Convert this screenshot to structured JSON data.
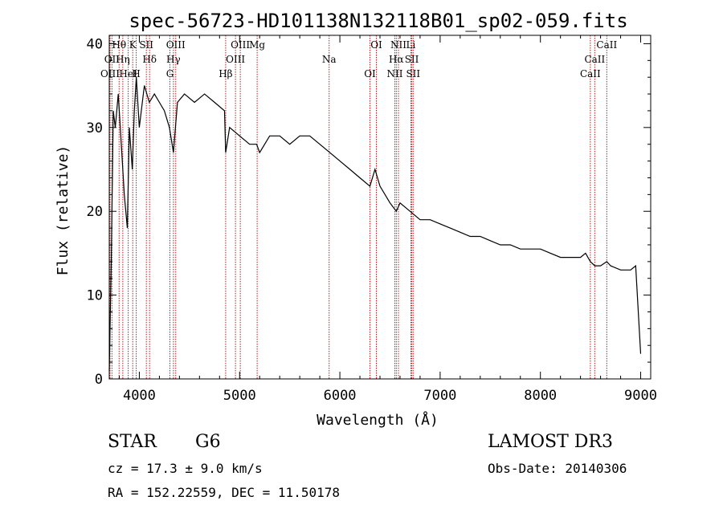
{
  "chart_data": {
    "type": "line",
    "title": "spec-56723-HD101138N132118B01_sp02-059.fits",
    "xlabel": "Wavelength (Å)",
    "ylabel": "Flux (relative)",
    "xlim": [
      3700,
      9100
    ],
    "ylim": [
      0,
      41
    ],
    "xticks": [
      4000,
      5000,
      6000,
      7000,
      8000,
      9000
    ],
    "yticks": [
      0,
      10,
      20,
      30,
      40
    ],
    "x_tick_labels": [
      "4000",
      "5000",
      "6000",
      "7000",
      "8000",
      "9000"
    ],
    "y_tick_labels": [
      "0",
      "10",
      "20",
      "30",
      "40"
    ],
    "grid": false,
    "series": [
      {
        "name": "flux",
        "x": [
          3700,
          3720,
          3740,
          3760,
          3790,
          3820,
          3850,
          3880,
          3900,
          3930,
          3950,
          3970,
          4000,
          4050,
          4100,
          4150,
          4200,
          4250,
          4300,
          4340,
          4380,
          4450,
          4550,
          4650,
          4750,
          4850,
          4861,
          4900,
          5000,
          5100,
          5170,
          5200,
          5300,
          5400,
          5500,
          5600,
          5700,
          5800,
          5900,
          6000,
          6100,
          6200,
          6300,
          6350,
          6400,
          6500,
          6563,
          6600,
          6700,
          6800,
          6900,
          7000,
          7100,
          7200,
          7300,
          7400,
          7500,
          7600,
          7700,
          7800,
          7900,
          8000,
          8100,
          8200,
          8300,
          8400,
          8450,
          8498,
          8542,
          8600,
          8662,
          8700,
          8800,
          8900,
          8950,
          9000
        ],
        "y": [
          1,
          14,
          32,
          30,
          34,
          28,
          22,
          18,
          30,
          25,
          32,
          36,
          30,
          35,
          33,
          34,
          33,
          32,
          30,
          27,
          33,
          34,
          33,
          34,
          33,
          32,
          27,
          30,
          29,
          28,
          28,
          27,
          29,
          29,
          28,
          29,
          29,
          28,
          27,
          26,
          25,
          24,
          23,
          25,
          23,
          21,
          20,
          21,
          20,
          19,
          19,
          18.5,
          18,
          17.5,
          17,
          17,
          16.5,
          16,
          16,
          15.5,
          15.5,
          15.5,
          15,
          14.5,
          14.5,
          14.5,
          15,
          14,
          13.5,
          13.5,
          14,
          13.5,
          13,
          13,
          13.5,
          3
        ]
      }
    ],
    "line_annotations": [
      {
        "label": "Hθ",
        "x": 3798
      },
      {
        "label": "OII",
        "x": 3727
      },
      {
        "label": "OIII",
        "x": 3700
      },
      {
        "label": "K",
        "x": 3934
      },
      {
        "label": "Hδ",
        "x": 4102
      },
      {
        "label": "HeI",
        "x": 3889
      },
      {
        "label": "SII",
        "x": 4070
      },
      {
        "label": "Hη",
        "x": 3835
      },
      {
        "label": "H",
        "x": 3969
      },
      {
        "label": "OIII",
        "x": 4363
      },
      {
        "label": "Hγ",
        "x": 4340
      },
      {
        "label": "G",
        "x": 4305
      },
      {
        "label": "OIII",
        "x": 5007
      },
      {
        "label": "OIII",
        "x": 4959
      },
      {
        "label": "Hβ",
        "x": 4861
      },
      {
        "label": "Mg",
        "x": 5175
      },
      {
        "label": "Na",
        "x": 5893
      },
      {
        "label": "OI",
        "x": 6300
      },
      {
        "label": "OI",
        "x": 6364
      },
      {
        "label": "Hα",
        "x": 6563
      },
      {
        "label": "NII",
        "x": 6548
      },
      {
        "label": "NII",
        "x": 6584
      },
      {
        "label": "SII",
        "x": 6717
      },
      {
        "label": "SII",
        "x": 6731
      },
      {
        "label": "Li",
        "x": 6708
      },
      {
        "label": "CaII",
        "x": 8542
      },
      {
        "label": "CaII",
        "x": 8498
      },
      {
        "label": "CaII",
        "x": 8662
      }
    ]
  },
  "info": {
    "class_label": "STAR",
    "subclass": "G6",
    "survey": "LAMOST DR3",
    "redshift": "cz = 17.3 ± 9.0 km/s",
    "obs_date": "Obs-Date: 20140306",
    "coords": "RA = 152.22559, DEC =  11.50178"
  }
}
